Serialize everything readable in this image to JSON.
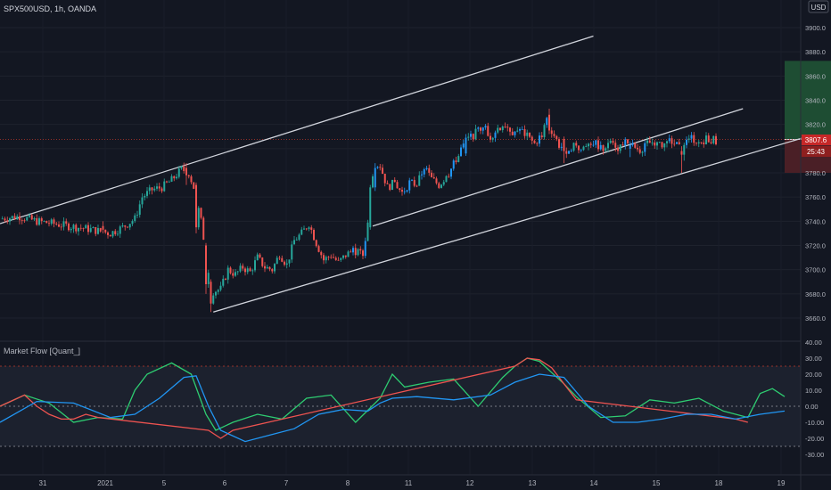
{
  "header": {
    "symbol_title": "SPX500USD, 1h, OANDA",
    "currency": "USD"
  },
  "indicator": {
    "title": "Market Flow [Quant_]"
  },
  "price_badges": {
    "last_price": "3807.6",
    "countdown": "25:43"
  },
  "colors": {
    "background": "#131722",
    "up_candle": "#26a69a",
    "up_candle_bright": "#2196f3",
    "down_candle": "#ef5350",
    "trendline": "#d1d4dc",
    "target_zone": "#1e4d33",
    "stop_zone": "#4a1f26",
    "flow_green": "#2ecc71",
    "flow_red": "#ef5350",
    "flow_blue": "#2196f3",
    "price_line": "#c0392b"
  },
  "chart_data": [
    {
      "type": "candlestick",
      "title": "SPX500USD, 1h, OANDA",
      "ylim": [
        3645,
        3925
      ],
      "y_ticks": [
        "3900.0",
        "3880.0",
        "3860.0",
        "3840.0",
        "3820.0",
        "3800.0",
        "3780.0",
        "3760.0",
        "3740.0",
        "3720.0",
        "3700.0",
        "3680.0",
        "3660.0"
      ],
      "y_tick_values": [
        3900,
        3880,
        3860,
        3840,
        3820,
        3800,
        3780,
        3760,
        3740,
        3720,
        3700,
        3680,
        3660
      ],
      "x_ticks": [
        "31",
        "2021",
        "5",
        "6",
        "7",
        "8",
        "11",
        "12",
        "13",
        "14",
        "15",
        "18",
        "19"
      ],
      "x_index_range": [
        0,
        300
      ],
      "close_path": [
        [
          0,
          3742
        ],
        [
          8,
          3744
        ],
        [
          15,
          3740
        ],
        [
          22,
          3738
        ],
        [
          28,
          3736
        ],
        [
          35,
          3734
        ],
        [
          40,
          3732
        ],
        [
          45,
          3730
        ],
        [
          50,
          3735
        ],
        [
          55,
          3742
        ],
        [
          58,
          3760
        ],
        [
          62,
          3766
        ],
        [
          66,
          3768
        ],
        [
          70,
          3774
        ],
        [
          74,
          3783
        ],
        [
          77,
          3780
        ],
        [
          79,
          3768
        ],
        [
          82,
          3740
        ],
        [
          85,
          3700
        ],
        [
          87,
          3682
        ],
        [
          90,
          3684
        ],
        [
          93,
          3700
        ],
        [
          96,
          3696
        ],
        [
          99,
          3702
        ],
        [
          102,
          3698
        ],
        [
          105,
          3710
        ],
        [
          108,
          3702
        ],
        [
          111,
          3700
        ],
        [
          114,
          3713
        ],
        [
          117,
          3704
        ],
        [
          120,
          3724
        ],
        [
          123,
          3730
        ],
        [
          126,
          3738
        ],
        [
          129,
          3722
        ],
        [
          132,
          3708
        ],
        [
          135,
          3712
        ],
        [
          138,
          3706
        ],
        [
          141,
          3712
        ],
        [
          144,
          3716
        ],
        [
          148,
          3712
        ],
        [
          150,
          3740
        ],
        [
          152,
          3780
        ],
        [
          155,
          3786
        ],
        [
          158,
          3768
        ],
        [
          161,
          3772
        ],
        [
          164,
          3763
        ],
        [
          167,
          3772
        ],
        [
          170,
          3770
        ],
        [
          173,
          3785
        ],
        [
          176,
          3775
        ],
        [
          179,
          3770
        ],
        [
          182,
          3776
        ],
        [
          185,
          3787
        ],
        [
          188,
          3800
        ],
        [
          191,
          3808
        ],
        [
          194,
          3813
        ],
        [
          197,
          3820
        ],
        [
          200,
          3810
        ],
        [
          203,
          3817
        ],
        [
          206,
          3820
        ],
        [
          209,
          3814
        ],
        [
          212,
          3816
        ],
        [
          215,
          3810
        ],
        [
          218,
          3804
        ],
        [
          221,
          3812
        ],
        [
          223,
          3823
        ],
        [
          225,
          3815
        ],
        [
          228,
          3803
        ],
        [
          231,
          3799
        ],
        [
          234,
          3803
        ],
        [
          237,
          3799
        ],
        [
          240,
          3806
        ],
        [
          243,
          3804
        ],
        [
          246,
          3800
        ],
        [
          249,
          3807
        ],
        [
          252,
          3801
        ],
        [
          255,
          3806
        ],
        [
          258,
          3802
        ],
        [
          261,
          3799
        ],
        [
          264,
          3804
        ],
        [
          267,
          3806
        ],
        [
          270,
          3801
        ],
        [
          273,
          3807
        ],
        [
          276,
          3803
        ],
        [
          279,
          3810
        ],
        [
          282,
          3809
        ],
        [
          285,
          3805
        ],
        [
          288,
          3808
        ],
        [
          292,
          3807
        ]
      ],
      "candles": [
        {
          "i": 42,
          "o": 3736,
          "h": 3740,
          "l": 3730,
          "c": 3733
        },
        {
          "i": 76,
          "o": 3784,
          "h": 3788,
          "l": 3770,
          "c": 3778
        },
        {
          "i": 80,
          "o": 3770,
          "h": 3772,
          "l": 3730,
          "c": 3735
        },
        {
          "i": 84,
          "o": 3720,
          "h": 3722,
          "l": 3680,
          "c": 3688
        },
        {
          "i": 86,
          "o": 3690,
          "h": 3692,
          "l": 3665,
          "c": 3672
        },
        {
          "i": 151,
          "o": 3735,
          "h": 3770,
          "l": 3733,
          "c": 3768
        },
        {
          "i": 153,
          "o": 3768,
          "h": 3788,
          "l": 3765,
          "c": 3784
        },
        {
          "i": 190,
          "o": 3796,
          "h": 3812,
          "l": 3794,
          "c": 3809
        },
        {
          "i": 224,
          "o": 3828,
          "h": 3833,
          "l": 3812,
          "c": 3815
        },
        {
          "i": 230,
          "o": 3808,
          "h": 3810,
          "l": 3788,
          "c": 3798
        },
        {
          "i": 257,
          "o": 3800,
          "h": 3806,
          "l": 3793,
          "c": 3803
        },
        {
          "i": 278,
          "o": 3798,
          "h": 3802,
          "l": 3780,
          "c": 3795
        },
        {
          "i": 279,
          "o": 3795,
          "h": 3805,
          "l": 3790,
          "c": 3803
        }
      ],
      "trendlines": [
        {
          "x1": 0,
          "y1": 3738,
          "x2": 242,
          "y2": 3893
        },
        {
          "x1": 87,
          "y1": 3665,
          "x2": 331,
          "y2": 3811
        },
        {
          "x1": 152,
          "y1": 3736,
          "x2": 303,
          "y2": 3833
        }
      ],
      "position": {
        "entry": 3807.6,
        "target": 3872.5,
        "stop": 3780.0,
        "x_start": 320,
        "x_end": 390
      },
      "price_line": 3807.6
    },
    {
      "type": "line",
      "title": "Market Flow [Quant_]",
      "ylim": [
        -36,
        42
      ],
      "y_ticks": [
        "40.00",
        "30.00",
        "20.00",
        "10.00",
        "0.00",
        "-10.00",
        "-20.00",
        "-30.00"
      ],
      "y_tick_values": [
        40,
        30,
        20,
        10,
        0,
        -10,
        -20,
        -30
      ],
      "bands": [
        25,
        0,
        -25
      ],
      "series": [
        {
          "color_key": "flow_green",
          "x": [
            0,
            10,
            20,
            30,
            40,
            50,
            55,
            60,
            70,
            78,
            84,
            88,
            95,
            105,
            115,
            125,
            135,
            145,
            155,
            160,
            165,
            175,
            185,
            195,
            205,
            210,
            215,
            220,
            230,
            235,
            245,
            255,
            265,
            275,
            285,
            295,
            305,
            310,
            315,
            320
          ],
          "values": [
            0,
            7,
            2,
            -10,
            -7,
            -8,
            10,
            20,
            27,
            20,
            -5,
            -15,
            -10,
            -5,
            -8,
            5,
            7,
            -10,
            5,
            20,
            12,
            15,
            17,
            0,
            18,
            25,
            30,
            28,
            14,
            6,
            -7,
            -6,
            4,
            2,
            5,
            -3,
            -7,
            8,
            11,
            6
          ]
        },
        {
          "color_key": "flow_red",
          "x": [
            0,
            10,
            15,
            20,
            25,
            30,
            35,
            40,
            85,
            90,
            95,
            210,
            215,
            220,
            225,
            230,
            235,
            300,
            305
          ],
          "values": [
            0,
            7,
            0,
            -5,
            -8,
            -8,
            -5,
            -7,
            -15,
            -20,
            -15,
            25,
            30,
            29,
            24,
            14,
            4,
            -8,
            -10
          ]
        },
        {
          "color_key": "flow_blue",
          "x": [
            0,
            15,
            30,
            45,
            55,
            65,
            75,
            80,
            85,
            90,
            100,
            110,
            120,
            130,
            140,
            150,
            155,
            160,
            170,
            185,
            200,
            210,
            220,
            230,
            240,
            250,
            260,
            270,
            280,
            290,
            300,
            310,
            320
          ],
          "values": [
            -10,
            3,
            2,
            -7,
            -5,
            5,
            18,
            19,
            0,
            -15,
            -22,
            -18,
            -14,
            -5,
            -2,
            -3,
            2,
            5,
            6,
            4,
            7,
            15,
            20,
            18,
            0,
            -10,
            -10,
            -8,
            -5,
            -5,
            -8,
            -5,
            -3
          ]
        }
      ]
    }
  ]
}
